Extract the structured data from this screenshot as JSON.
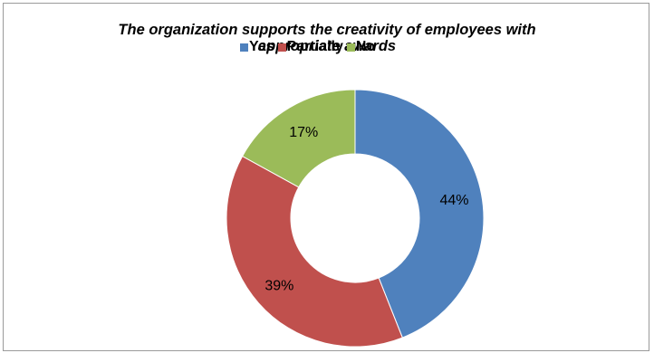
{
  "chart_data": {
    "type": "donut",
    "title_line1": "The organization supports the creativity of employees with",
    "title_line2": "appropriate awards",
    "legend_placement": "top",
    "series": [
      {
        "name": "Yes",
        "value": 44,
        "label": "44%",
        "color": "#4f81bd"
      },
      {
        "name": "Partially",
        "value": 39,
        "label": "39%",
        "color": "#c0504d"
      },
      {
        "name": "No",
        "value": 17,
        "label": "17%",
        "color": "#9bbb59"
      }
    ]
  }
}
